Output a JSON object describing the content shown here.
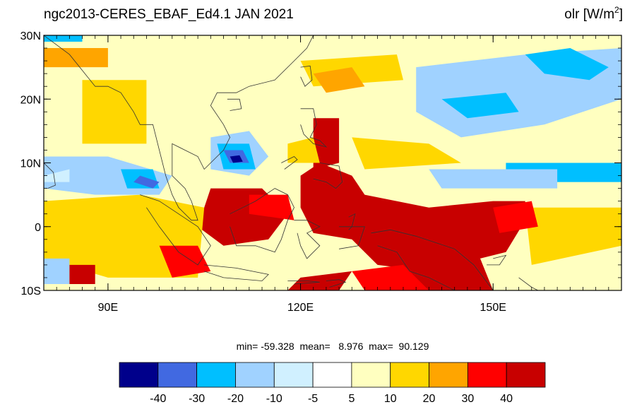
{
  "title": "ngc2013-CERES_EBAF_Ed4.1  JAN 2021",
  "variable": {
    "name": "olr",
    "unit_prefix": "[W/m",
    "unit_sup": "2",
    "unit_suffix": "]"
  },
  "stats": "min= -59.328  mean=   8.976  max=  90.129",
  "chart_data": {
    "type": "heatmap",
    "x_range": [
      80,
      170
    ],
    "y_range": [
      -10,
      30
    ],
    "x_ticks": [
      {
        "value": 90,
        "label": "90E"
      },
      {
        "value": 120,
        "label": "120E"
      },
      {
        "value": 150,
        "label": "150E"
      }
    ],
    "y_ticks": [
      {
        "value": 30,
        "label": "30N"
      },
      {
        "value": 20,
        "label": "20N"
      },
      {
        "value": 10,
        "label": "10N"
      },
      {
        "value": 0,
        "label": "0"
      },
      {
        "value": -10,
        "label": "10S"
      }
    ],
    "colorbar": {
      "colors": [
        "#00008b",
        "#4169e1",
        "#00bfff",
        "#a0d2ff",
        "#d0f0ff",
        "#ffffff",
        "#ffffc0",
        "#ffd700",
        "#ffa500",
        "#ff0000",
        "#c80000"
      ],
      "labels": [
        "-40",
        "-30",
        "-20",
        "-10",
        "-5",
        "5",
        "10",
        "20",
        "30",
        "40"
      ]
    },
    "features": [
      {
        "level": 10,
        "points": [
          [
            120,
            3
          ],
          [
            120,
            8
          ],
          [
            123,
            10
          ],
          [
            128,
            8
          ],
          [
            130,
            5
          ],
          [
            140,
            3
          ],
          [
            150,
            4
          ],
          [
            155,
            4
          ],
          [
            155,
            1
          ],
          [
            152,
            -4
          ],
          [
            140,
            -7
          ],
          [
            132,
            -6
          ],
          [
            128,
            -2
          ],
          [
            122,
            -1
          ]
        ]
      },
      {
        "level": 10,
        "points": [
          [
            122,
            17
          ],
          [
            126,
            17
          ],
          [
            126,
            10
          ],
          [
            122,
            9
          ]
        ]
      },
      {
        "level": 10,
        "points": [
          [
            106,
            6
          ],
          [
            114,
            6
          ],
          [
            118,
            2
          ],
          [
            115,
            -2
          ],
          [
            108,
            -3
          ],
          [
            104,
            0
          ]
        ]
      },
      {
        "level": 10,
        "points": [
          [
            120,
            -8
          ],
          [
            128,
            -7
          ],
          [
            126,
            -10
          ],
          [
            118,
            -10
          ]
        ]
      },
      {
        "level": 10,
        "points": [
          [
            136,
            -6
          ],
          [
            148,
            -5
          ],
          [
            150,
            -10
          ],
          [
            138,
            -10
          ]
        ]
      },
      {
        "level": 8,
        "points": [
          [
            80,
            28
          ],
          [
            90,
            28
          ],
          [
            90,
            25
          ],
          [
            80,
            25
          ]
        ]
      },
      {
        "level": 7,
        "points": [
          [
            86,
            23
          ],
          [
            96,
            23
          ],
          [
            96,
            13
          ],
          [
            86,
            13
          ]
        ]
      },
      {
        "level": 7,
        "points": [
          [
            120,
            26
          ],
          [
            135,
            27
          ],
          [
            136,
            23
          ],
          [
            122,
            22
          ]
        ]
      },
      {
        "level": 7,
        "points": [
          [
            80,
            4
          ],
          [
            95,
            5
          ],
          [
            105,
            3
          ],
          [
            104,
            -8
          ],
          [
            90,
            -8
          ],
          [
            80,
            -5
          ]
        ]
      },
      {
        "level": 8,
        "points": [
          [
            122,
            24
          ],
          [
            128,
            25
          ],
          [
            130,
            22
          ],
          [
            124,
            21
          ]
        ]
      },
      {
        "level": 7,
        "points": [
          [
            155,
            3
          ],
          [
            170,
            3
          ],
          [
            170,
            -3
          ],
          [
            156,
            -6
          ]
        ]
      },
      {
        "level": 7,
        "points": [
          [
            118,
            13
          ],
          [
            122,
            14
          ],
          [
            123,
            10
          ],
          [
            118,
            10
          ]
        ]
      },
      {
        "level": 7,
        "points": [
          [
            80,
            2
          ],
          [
            92,
            2
          ],
          [
            92,
            -2
          ],
          [
            80,
            -2
          ]
        ]
      },
      {
        "level": 7,
        "points": [
          [
            128,
            14
          ],
          [
            140,
            13
          ],
          [
            145,
            10
          ],
          [
            130,
            9
          ]
        ]
      },
      {
        "level": 3,
        "points": [
          [
            138,
            25
          ],
          [
            155,
            27
          ],
          [
            170,
            28
          ],
          [
            170,
            20
          ],
          [
            158,
            16
          ],
          [
            145,
            14
          ],
          [
            138,
            18
          ]
        ]
      },
      {
        "level": 2,
        "points": [
          [
            155,
            27
          ],
          [
            162,
            28
          ],
          [
            168,
            25
          ],
          [
            165,
            23
          ],
          [
            158,
            24
          ]
        ]
      },
      {
        "level": 2,
        "points": [
          [
            142,
            20
          ],
          [
            152,
            21
          ],
          [
            154,
            18
          ],
          [
            146,
            17
          ]
        ]
      },
      {
        "level": 2,
        "points": [
          [
            152,
            10
          ],
          [
            170,
            10
          ],
          [
            170,
            7
          ],
          [
            152,
            7
          ]
        ]
      },
      {
        "level": 3,
        "points": [
          [
            140,
            9
          ],
          [
            160,
            9
          ],
          [
            160,
            6
          ],
          [
            142,
            6
          ]
        ]
      },
      {
        "level": 3,
        "points": [
          [
            80,
            11
          ],
          [
            90,
            11
          ],
          [
            100,
            8
          ],
          [
            98,
            5
          ],
          [
            88,
            5
          ],
          [
            80,
            6
          ]
        ]
      },
      {
        "level": 2,
        "points": [
          [
            92,
            9
          ],
          [
            97,
            9
          ],
          [
            98,
            6
          ],
          [
            93,
            6
          ]
        ]
      },
      {
        "level": 1,
        "points": [
          [
            95,
            8
          ],
          [
            98,
            7
          ],
          [
            97,
            6
          ],
          [
            94,
            7
          ]
        ]
      },
      {
        "level": 3,
        "points": [
          [
            106,
            14
          ],
          [
            112,
            15
          ],
          [
            115,
            11
          ],
          [
            112,
            8
          ],
          [
            106,
            9
          ]
        ]
      },
      {
        "level": 2,
        "points": [
          [
            107,
            13
          ],
          [
            112,
            13
          ],
          [
            113,
            9
          ],
          [
            108,
            9
          ]
        ]
      },
      {
        "level": 1,
        "points": [
          [
            108,
            12
          ],
          [
            111,
            12
          ],
          [
            112,
            10
          ],
          [
            109,
            10
          ]
        ]
      },
      {
        "level": 0,
        "points": [
          [
            109,
            11
          ],
          [
            110.5,
            11.2
          ],
          [
            111,
            10.2
          ],
          [
            109.5,
            10
          ]
        ]
      },
      {
        "level": 2,
        "points": [
          [
            80,
            30
          ],
          [
            86,
            30
          ],
          [
            86,
            29
          ],
          [
            80,
            29
          ]
        ]
      },
      {
        "level": 4,
        "points": [
          [
            80,
            8
          ],
          [
            84,
            9
          ],
          [
            84,
            7
          ],
          [
            80,
            7
          ]
        ]
      },
      {
        "level": 3,
        "points": [
          [
            80,
            -5
          ],
          [
            84,
            -5
          ],
          [
            84,
            -9
          ],
          [
            80,
            -9
          ]
        ]
      },
      {
        "level": 10,
        "points": [
          [
            84,
            -6
          ],
          [
            88,
            -6
          ],
          [
            88,
            -9
          ],
          [
            84,
            -9
          ]
        ]
      },
      {
        "level": 9,
        "points": [
          [
            98,
            -3
          ],
          [
            104,
            -3
          ],
          [
            106,
            -7
          ],
          [
            100,
            -8
          ]
        ]
      },
      {
        "level": 9,
        "points": [
          [
            112,
            5
          ],
          [
            118,
            5
          ],
          [
            119,
            1
          ],
          [
            112,
            2
          ]
        ]
      },
      {
        "level": 9,
        "points": [
          [
            150,
            3
          ],
          [
            156,
            4
          ],
          [
            157,
            0
          ],
          [
            151,
            -1
          ]
        ]
      },
      {
        "level": 9,
        "points": [
          [
            128,
            -7
          ],
          [
            136,
            -6
          ],
          [
            140,
            -10
          ],
          [
            130,
            -10
          ]
        ]
      }
    ],
    "coastlines": [
      [
        [
          80,
          30
        ],
        [
          84,
          27
        ],
        [
          88,
          22
        ],
        [
          90,
          22
        ],
        [
          92,
          21
        ],
        [
          94,
          18
        ],
        [
          95,
          16
        ],
        [
          97,
          16
        ],
        [
          98,
          12
        ],
        [
          99,
          8
        ],
        [
          100,
          5
        ],
        [
          101,
          3
        ],
        [
          103,
          1
        ],
        [
          104,
          1
        ],
        [
          103,
          4
        ],
        [
          102,
          6
        ],
        [
          100,
          8
        ],
        [
          100,
          13
        ],
        [
          102,
          12
        ],
        [
          104,
          11
        ],
        [
          105,
          9
        ],
        [
          106,
          10
        ],
        [
          108,
          12
        ],
        [
          109,
          14
        ],
        [
          108,
          16
        ],
        [
          106,
          19
        ],
        [
          107,
          21
        ],
        [
          110,
          21
        ],
        [
          112,
          22
        ],
        [
          116,
          23
        ],
        [
          119,
          26
        ],
        [
          121,
          28
        ],
        [
          122,
          30
        ]
      ],
      [
        [
          120,
          25
        ],
        [
          121.5,
          25.2
        ],
        [
          121.8,
          23
        ],
        [
          120.7,
          22
        ],
        [
          120,
          23.5
        ]
      ],
      [
        [
          108.6,
          20
        ],
        [
          110.5,
          20
        ],
        [
          110.8,
          18.5
        ],
        [
          109,
          18.2
        ]
      ],
      [
        [
          80,
          10
        ],
        [
          81.5,
          8.5
        ],
        [
          81.8,
          6.5
        ],
        [
          80.6,
          6
        ]
      ],
      [
        [
          95,
          5
        ],
        [
          98,
          4
        ],
        [
          101,
          2
        ],
        [
          104,
          0
        ],
        [
          106,
          -3
        ],
        [
          104,
          -6
        ],
        [
          101,
          -4
        ],
        [
          98,
          0
        ],
        [
          96,
          3
        ]
      ],
      [
        [
          105,
          -6
        ],
        [
          110,
          -6.5
        ],
        [
          115,
          -7.5
        ],
        [
          114,
          -8.5
        ],
        [
          108,
          -8
        ],
        [
          105,
          -7
        ]
      ],
      [
        [
          109,
          2
        ],
        [
          111,
          3
        ],
        [
          113,
          4
        ],
        [
          116,
          6
        ],
        [
          118,
          5
        ],
        [
          119,
          3
        ],
        [
          118,
          1
        ],
        [
          117,
          -2
        ],
        [
          116,
          -4
        ],
        [
          113,
          -3
        ],
        [
          110,
          -3
        ],
        [
          109,
          0
        ]
      ],
      [
        [
          119,
          1
        ],
        [
          121,
          1
        ],
        [
          123,
          0
        ],
        [
          121,
          -1
        ],
        [
          123,
          -3
        ],
        [
          121,
          -5
        ],
        [
          120,
          -3
        ],
        [
          119.5,
          -1
        ]
      ],
      [
        [
          120,
          18.5
        ],
        [
          122,
          18.5
        ],
        [
          122.5,
          16
        ],
        [
          121.5,
          14
        ],
        [
          123,
          13.5
        ],
        [
          124,
          12.5
        ],
        [
          122,
          13
        ],
        [
          120.5,
          14.5
        ],
        [
          120,
          16
        ]
      ],
      [
        [
          123,
          10
        ],
        [
          126,
          9.5
        ],
        [
          126.5,
          7
        ],
        [
          125.5,
          6
        ],
        [
          124,
          7
        ],
        [
          122,
          7.5
        ]
      ],
      [
        [
          117,
          10
        ],
        [
          119,
          11
        ],
        [
          119.5,
          10.5
        ],
        [
          117.5,
          9
        ]
      ],
      [
        [
          127.5,
          1.5
        ],
        [
          128.5,
          2
        ],
        [
          128,
          0
        ],
        [
          127.5,
          -0.5
        ]
      ],
      [
        [
          131,
          -1
        ],
        [
          134,
          -0.5
        ],
        [
          138,
          -1.5
        ],
        [
          141,
          -2.5
        ],
        [
          144,
          -3.5
        ],
        [
          147,
          -6
        ],
        [
          150,
          -10
        ],
        [
          144,
          -10
        ],
        [
          140,
          -8
        ],
        [
          137,
          -7
        ],
        [
          135,
          -4
        ],
        [
          132,
          -3
        ]
      ],
      [
        [
          150,
          -5
        ],
        [
          152,
          -4.5
        ],
        [
          151,
          -6
        ],
        [
          149,
          -6
        ]
      ],
      [
        [
          118,
          -8.5
        ],
        [
          121,
          -8.5
        ],
        [
          123,
          -8.7
        ],
        [
          119,
          -9
        ]
      ],
      [
        [
          124,
          -8.5
        ],
        [
          126,
          -8.3
        ],
        [
          127,
          -8.7
        ],
        [
          124.5,
          -9.5
        ]
      ],
      [
        [
          126,
          0
        ],
        [
          130,
          0
        ],
        [
          129,
          -3
        ],
        [
          126,
          -3.5
        ]
      ],
      [
        [
          154,
          -8
        ],
        [
          156,
          -9.5
        ],
        [
          157,
          -10
        ],
        [
          155,
          -10
        ]
      ]
    ]
  }
}
